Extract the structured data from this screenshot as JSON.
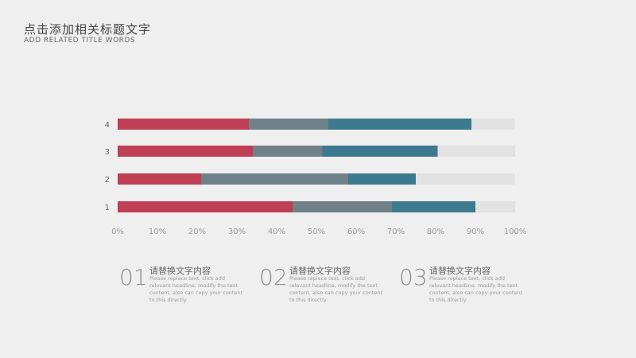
{
  "header": {
    "title": "点击添加相关标题文字",
    "subtitle": "ADD RELATED TITLE WORDS"
  },
  "colors": {
    "series1": "#bf3f55",
    "series2": "#6f8088",
    "series3": "#3d7a8f",
    "remainder": "#e2e2e2"
  },
  "chart_data": {
    "type": "bar",
    "orientation": "horizontal",
    "stacked": true,
    "categories": [
      "1",
      "2",
      "3",
      "4"
    ],
    "series": [
      {
        "values": [
          44,
          21,
          34,
          33
        ]
      },
      {
        "values": [
          25,
          37,
          17.5,
          20
        ]
      },
      {
        "values": [
          21,
          17,
          29,
          36
        ]
      }
    ],
    "xlim": [
      0,
      100
    ],
    "xticks": [
      "0%",
      "10%",
      "20%",
      "30%",
      "40%",
      "50%",
      "60%",
      "70%",
      "80%",
      "90%",
      "100%"
    ],
    "grid": false,
    "legend": "none"
  },
  "items": [
    {
      "num": "01",
      "head": "请替换文字内容",
      "desc": "Please replace text, click add relevant headline, modify the text content, also can copy your content to this directly."
    },
    {
      "num": "02",
      "head": "请替换文字内容",
      "desc": "Please replace text, click add relevant headline, modify the text content, also can copy your content to this directly."
    },
    {
      "num": "03",
      "head": "请替换文字内容",
      "desc": "Please replace text, click add relevant headline, modify the text content, also can copy your content to this directly."
    }
  ]
}
